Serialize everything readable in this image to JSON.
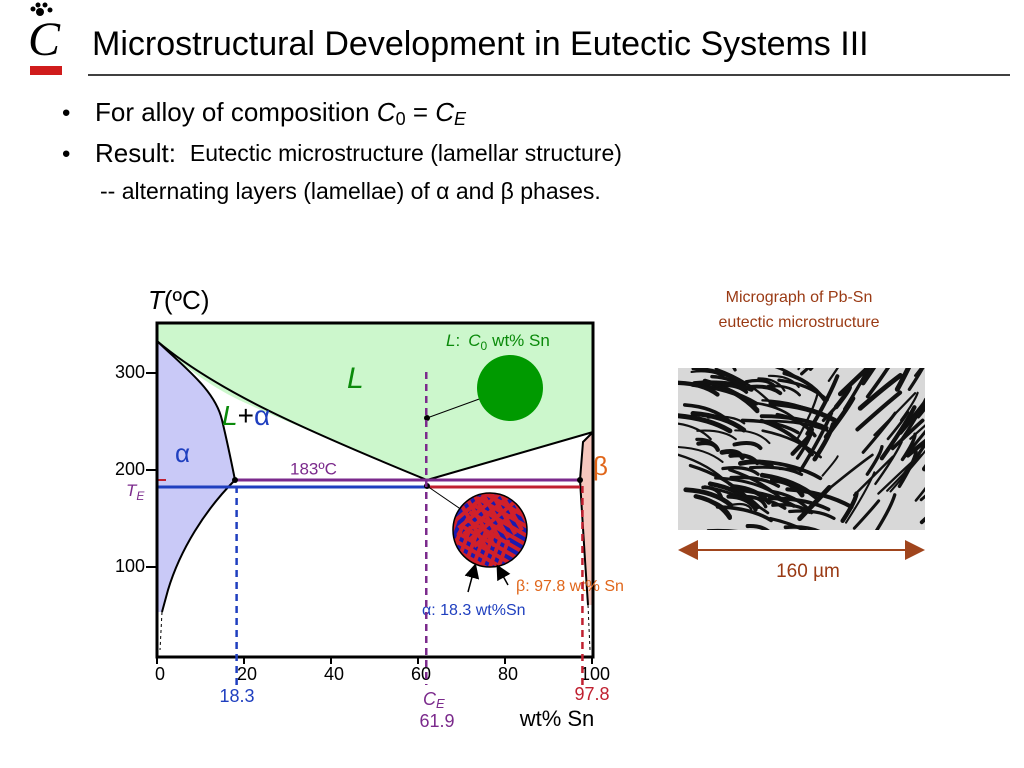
{
  "logo": {
    "letter": "C"
  },
  "title": "Microstructural Development in Eutectic Systems III",
  "bullets": [
    {
      "text": "For alloy of composition",
      "c": "C",
      "c_sub": "0",
      "equals": "=",
      "ce": "C",
      "ce_sub": "E"
    },
    {
      "lead": "Result:",
      "text": "Eutectic microstructure (lamellar structure)",
      "continuation": "-- alternating layers (lamellae) of α and β phases."
    }
  ],
  "phase_diagram": {
    "y_axis": {
      "symbol": "T",
      "unit": "(ºC)",
      "ticks": [
        100,
        200,
        300
      ]
    },
    "x_axis": {
      "label": "wt% Sn",
      "ticks": [
        0,
        20,
        40,
        60,
        80,
        100
      ]
    },
    "compositions": {
      "alpha": 18.3,
      "eutectic": 61.9,
      "beta": 97.8
    },
    "eutectic_symbol": {
      "letter": "C",
      "sub": "E"
    },
    "te_label": {
      "letter": "T",
      "sub": "E"
    },
    "eutectic_temperature": "183ºC",
    "regions": {
      "liquid": "L",
      "liquid_alpha": {
        "l": "L",
        "plus": "+",
        "alpha": "α"
      },
      "alpha": "α",
      "beta": "β"
    },
    "liquid_callout": {
      "prefix": "L",
      "colon": ":",
      "c": "C",
      "sub": "0",
      "rest": "wt% Sn"
    },
    "beta_callout": "β: 97.8 wt% Sn",
    "alpha_callout": "α: 18.3 wt%Sn"
  },
  "micrograph": {
    "caption_line1": "Micrograph of Pb-Sn",
    "caption_line2": "eutectic  microstructure",
    "scale": "160 µm"
  }
}
